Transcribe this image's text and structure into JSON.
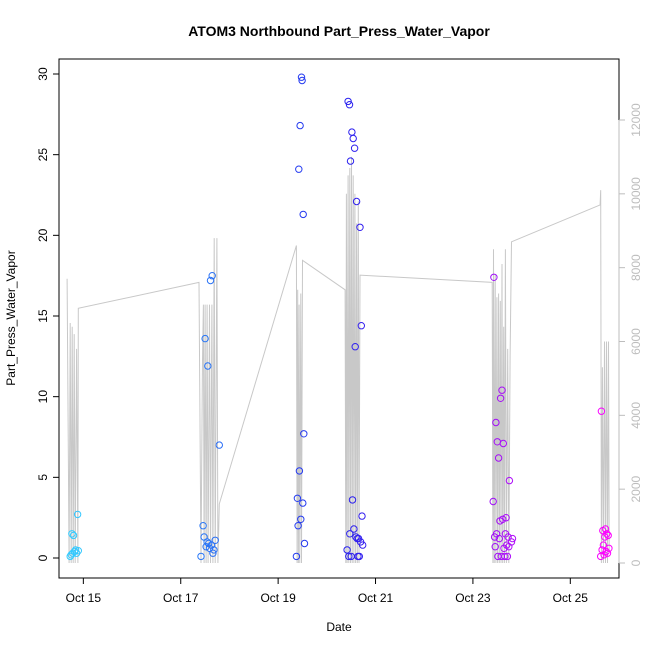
{
  "chart_data": {
    "type": "scatter",
    "title": "ATOM3 Northbound Part_Press_Water_Vapor",
    "xlabel": "Date",
    "ylabel": "Part_Press_Water_Vapor",
    "x_ticks": [
      "Oct 15",
      "Oct 17",
      "Oct 19",
      "Oct 21",
      "Oct 23",
      "Oct 25"
    ],
    "xlim": [
      "2017-10-14 12:00",
      "2017-10-26 00:00"
    ],
    "ylim": [
      0,
      30
    ],
    "y_ticks": [
      0,
      5,
      10,
      15,
      20,
      25,
      30
    ],
    "y2_ticks": [
      0,
      2000,
      4000,
      6000,
      8000,
      10000,
      12000
    ],
    "y2lim": [
      -250,
      13300
    ],
    "grid": false,
    "colors": {
      "point_start": "#33ccff",
      "point_mid": "#2222ee",
      "point_end": "#ff00ff",
      "altitude_line": "#c8c8c8"
    },
    "series": [
      {
        "type": "scatter",
        "marker": "open-circle",
        "points": [
          [
            "2017-10-14 17:30",
            0.1
          ],
          [
            "2017-10-14 18:00",
            0.2
          ],
          [
            "2017-10-14 18:20",
            1.5
          ],
          [
            "2017-10-14 18:45",
            0.3
          ],
          [
            "2017-10-14 19:10",
            1.4
          ],
          [
            "2017-10-14 19:40",
            0.4
          ],
          [
            "2017-10-14 20:10",
            0.5
          ],
          [
            "2017-10-14 20:40",
            0.3
          ],
          [
            "2017-10-14 21:10",
            2.7
          ],
          [
            "2017-10-14 21:30",
            0.45
          ],
          [
            "2017-10-17 10:00",
            0.1
          ],
          [
            "2017-10-17 11:00",
            2.0
          ],
          [
            "2017-10-17 11:30",
            1.3
          ],
          [
            "2017-10-17 12:00",
            13.6
          ],
          [
            "2017-10-17 12:30",
            0.7
          ],
          [
            "2017-10-17 13:00",
            1.0
          ],
          [
            "2017-10-17 13:20",
            11.9
          ],
          [
            "2017-10-17 13:45",
            0.9
          ],
          [
            "2017-10-17 14:10",
            0.6
          ],
          [
            "2017-10-17 14:40",
            17.2
          ],
          [
            "2017-10-17 15:10",
            0.8
          ],
          [
            "2017-10-17 15:30",
            17.5
          ],
          [
            "2017-10-17 15:50",
            0.3
          ],
          [
            "2017-10-17 16:20",
            0.5
          ],
          [
            "2017-10-17 17:00",
            1.1
          ],
          [
            "2017-10-17 19:00",
            7.0
          ],
          [
            "2017-10-19 09:00",
            0.1
          ],
          [
            "2017-10-19 09:30",
            3.7
          ],
          [
            "2017-10-19 09:50",
            2.0
          ],
          [
            "2017-10-19 10:10",
            24.1
          ],
          [
            "2017-10-19 10:30",
            5.4
          ],
          [
            "2017-10-19 10:50",
            26.8
          ],
          [
            "2017-10-19 11:10",
            2.4
          ],
          [
            "2017-10-19 11:30",
            29.8
          ],
          [
            "2017-10-19 11:50",
            29.6
          ],
          [
            "2017-10-19 12:10",
            3.4
          ],
          [
            "2017-10-19 12:20",
            21.3
          ],
          [
            "2017-10-19 12:40",
            7.7
          ],
          [
            "2017-10-19 13:00",
            0.9
          ],
          [
            "2017-10-20 10:00",
            0.5
          ],
          [
            "2017-10-20 10:30",
            28.3
          ],
          [
            "2017-10-20 10:50",
            0.1
          ],
          [
            "2017-10-20 11:10",
            28.1
          ],
          [
            "2017-10-20 11:20",
            1.5
          ],
          [
            "2017-10-20 11:40",
            24.6
          ],
          [
            "2017-10-20 12:00",
            0.1
          ],
          [
            "2017-10-20 12:20",
            26.4
          ],
          [
            "2017-10-20 12:40",
            3.6
          ],
          [
            "2017-10-20 13:00",
            26.0
          ],
          [
            "2017-10-20 13:20",
            1.8
          ],
          [
            "2017-10-20 13:40",
            25.4
          ],
          [
            "2017-10-20 14:00",
            13.1
          ],
          [
            "2017-10-20 14:20",
            1.3
          ],
          [
            "2017-10-20 14:40",
            22.1
          ],
          [
            "2017-10-20 15:00",
            1.2
          ],
          [
            "2017-10-20 15:20",
            0.1
          ],
          [
            "2017-10-20 15:40",
            1.2
          ],
          [
            "2017-10-20 16:00",
            0.1
          ],
          [
            "2017-10-20 16:20",
            20.5
          ],
          [
            "2017-10-20 16:40",
            1.0
          ],
          [
            "2017-10-20 17:00",
            14.4
          ],
          [
            "2017-10-20 17:20",
            2.6
          ],
          [
            "2017-10-20 17:40",
            0.8
          ],
          [
            "2017-10-23 10:00",
            3.5
          ],
          [
            "2017-10-23 10:20",
            17.4
          ],
          [
            "2017-10-23 10:40",
            1.3
          ],
          [
            "2017-10-23 11:00",
            0.7
          ],
          [
            "2017-10-23 11:20",
            8.4
          ],
          [
            "2017-10-23 11:40",
            1.5
          ],
          [
            "2017-10-23 12:00",
            7.2
          ],
          [
            "2017-10-23 12:20",
            0.1
          ],
          [
            "2017-10-23 12:40",
            6.2
          ],
          [
            "2017-10-23 13:00",
            1.2
          ],
          [
            "2017-10-23 13:20",
            2.3
          ],
          [
            "2017-10-23 13:40",
            9.9
          ],
          [
            "2017-10-23 14:00",
            0.1
          ],
          [
            "2017-10-23 14:20",
            10.4
          ],
          [
            "2017-10-23 14:40",
            2.4
          ],
          [
            "2017-10-23 15:00",
            7.1
          ],
          [
            "2017-10-23 15:20",
            0.6
          ],
          [
            "2017-10-23 15:40",
            0.1
          ],
          [
            "2017-10-23 16:00",
            1.5
          ],
          [
            "2017-10-23 16:20",
            2.5
          ],
          [
            "2017-10-23 16:40",
            0.8
          ],
          [
            "2017-10-23 17:00",
            0.1
          ],
          [
            "2017-10-23 17:20",
            1.3
          ],
          [
            "2017-10-23 17:40",
            0.7
          ],
          [
            "2017-10-23 18:00",
            4.8
          ],
          [
            "2017-10-23 19:00",
            1.0
          ],
          [
            "2017-10-23 19:30",
            1.2
          ],
          [
            "2017-10-25 15:00",
            0.1
          ],
          [
            "2017-10-25 15:20",
            9.1
          ],
          [
            "2017-10-25 15:40",
            0.5
          ],
          [
            "2017-10-25 16:00",
            1.7
          ],
          [
            "2017-10-25 16:20",
            0.8
          ],
          [
            "2017-10-25 16:40",
            0.2
          ],
          [
            "2017-10-25 17:00",
            1.3
          ],
          [
            "2017-10-25 17:20",
            1.8
          ],
          [
            "2017-10-25 17:40",
            0.4
          ],
          [
            "2017-10-25 18:00",
            1.5
          ],
          [
            "2017-10-25 18:20",
            0.3
          ],
          [
            "2017-10-25 18:40",
            1.4
          ],
          [
            "2017-10-25 19:00",
            0.6
          ]
        ]
      },
      {
        "type": "line",
        "axis": "right",
        "color": "#c8c8c8",
        "points": [
          [
            "2017-10-14 16:00",
            7700
          ],
          [
            "2017-10-14 17:00",
            0
          ],
          [
            "2017-10-14 17:30",
            6500
          ],
          [
            "2017-10-14 18:00",
            0
          ],
          [
            "2017-10-14 18:30",
            6400
          ],
          [
            "2017-10-14 19:00",
            0
          ],
          [
            "2017-10-14 19:30",
            6200
          ],
          [
            "2017-10-14 20:00",
            0
          ],
          [
            "2017-10-14 20:40",
            5800
          ],
          [
            "2017-10-14 21:20",
            0
          ],
          [
            "2017-10-14 21:30",
            6900
          ],
          [
            "2017-10-17 09:00",
            7600
          ],
          [
            "2017-10-17 10:00",
            0
          ],
          [
            "2017-10-17 10:40",
            5300
          ],
          [
            "2017-10-17 11:10",
            7000
          ],
          [
            "2017-10-17 11:30",
            0
          ],
          [
            "2017-10-17 12:00",
            7000
          ],
          [
            "2017-10-17 12:30",
            0
          ],
          [
            "2017-10-17 13:00",
            7000
          ],
          [
            "2017-10-17 13:30",
            0
          ],
          [
            "2017-10-17 14:10",
            7000
          ],
          [
            "2017-10-17 14:40",
            0
          ],
          [
            "2017-10-17 15:20",
            7000
          ],
          [
            "2017-10-17 15:50",
            0
          ],
          [
            "2017-10-17 16:30",
            8800
          ],
          [
            "2017-10-17 17:00",
            0
          ],
          [
            "2017-10-17 17:50",
            8800
          ],
          [
            "2017-10-17 18:20",
            0
          ],
          [
            "2017-10-17 19:00",
            1600
          ],
          [
            "2017-10-19 09:00",
            8600
          ],
          [
            "2017-10-19 09:20",
            0
          ],
          [
            "2017-10-19 09:40",
            7400
          ],
          [
            "2017-10-19 10:00",
            0
          ],
          [
            "2017-10-19 10:20",
            7000
          ],
          [
            "2017-10-19 10:40",
            0
          ],
          [
            "2017-10-19 11:10",
            7300
          ],
          [
            "2017-10-19 11:30",
            0
          ],
          [
            "2017-10-19 12:00",
            8200
          ],
          [
            "2017-10-20 09:00",
            7400
          ],
          [
            "2017-10-20 09:20",
            0
          ],
          [
            "2017-10-20 09:40",
            10000
          ],
          [
            "2017-10-20 10:00",
            0
          ],
          [
            "2017-10-20 10:30",
            10500
          ],
          [
            "2017-10-20 10:50",
            0
          ],
          [
            "2017-10-20 11:20",
            10700
          ],
          [
            "2017-10-20 11:40",
            0
          ],
          [
            "2017-10-20 12:10",
            11000
          ],
          [
            "2017-10-20 12:30",
            0
          ],
          [
            "2017-10-20 13:00",
            10500
          ],
          [
            "2017-10-20 13:20",
            0
          ],
          [
            "2017-10-20 13:50",
            10000
          ],
          [
            "2017-10-20 14:10",
            0
          ],
          [
            "2017-10-20 14:40",
            9200
          ],
          [
            "2017-10-20 15:00",
            0
          ],
          [
            "2017-10-20 15:30",
            9800
          ],
          [
            "2017-10-20 15:50",
            0
          ],
          [
            "2017-10-20 16:20",
            7800
          ],
          [
            "2017-10-23 09:30",
            7600
          ],
          [
            "2017-10-23 09:50",
            0
          ],
          [
            "2017-10-23 10:10",
            8500
          ],
          [
            "2017-10-23 10:30",
            0
          ],
          [
            "2017-10-23 11:00",
            7800
          ],
          [
            "2017-10-23 11:20",
            0
          ],
          [
            "2017-10-23 11:50",
            7200
          ],
          [
            "2017-10-23 12:10",
            0
          ],
          [
            "2017-10-23 12:40",
            7300
          ],
          [
            "2017-10-23 13:00",
            0
          ],
          [
            "2017-10-23 13:30",
            7100
          ],
          [
            "2017-10-23 13:50",
            0
          ],
          [
            "2017-10-23 14:20",
            8100
          ],
          [
            "2017-10-23 14:40",
            0
          ],
          [
            "2017-10-23 15:10",
            6400
          ],
          [
            "2017-10-23 15:30",
            0
          ],
          [
            "2017-10-23 16:00",
            8500
          ],
          [
            "2017-10-23 16:30",
            0
          ],
          [
            "2017-10-23 17:10",
            5800
          ],
          [
            "2017-10-23 17:40",
            0
          ],
          [
            "2017-10-23 18:20",
            5600
          ],
          [
            "2017-10-23 19:00",
            8700
          ],
          [
            "2017-10-25 14:40",
            9700
          ],
          [
            "2017-10-25 15:00",
            10100
          ],
          [
            "2017-10-25 15:20",
            0
          ],
          [
            "2017-10-25 15:50",
            5300
          ],
          [
            "2017-10-25 16:20",
            0
          ],
          [
            "2017-10-25 16:50",
            6000
          ],
          [
            "2017-10-25 17:20",
            0
          ],
          [
            "2017-10-25 17:50",
            6000
          ],
          [
            "2017-10-25 18:20",
            0
          ],
          [
            "2017-10-25 18:50",
            6000
          ],
          [
            "2017-10-25 19:10",
            300
          ]
        ]
      }
    ]
  }
}
